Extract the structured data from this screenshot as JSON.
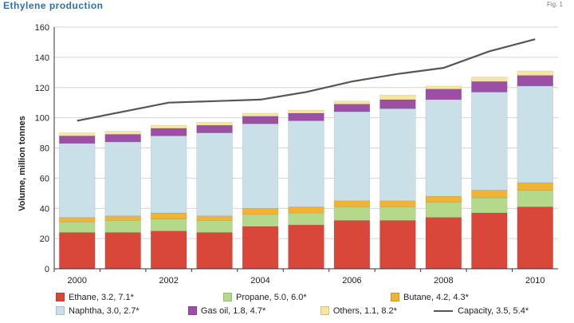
{
  "header": {
    "title": "Ethylene production",
    "fig": "Fig. 1"
  },
  "chart_data": {
    "type": "bar",
    "stacked": true,
    "title": "Ethylene production",
    "ylabel": "Volume, million tonnes",
    "ylim": [
      0,
      160
    ],
    "yticks": [
      0,
      20,
      40,
      60,
      80,
      100,
      120,
      140,
      160
    ],
    "categories": [
      "2000",
      "2001",
      "2002",
      "2003",
      "2004",
      "2005",
      "2006",
      "2007",
      "2008",
      "2009",
      "2010"
    ],
    "xtick_labels": [
      "2000",
      "",
      "2002",
      "",
      "2004",
      "",
      "2006",
      "",
      "2008",
      "",
      "2010"
    ],
    "grid": true,
    "legend_position": "bottom",
    "series": [
      {
        "name": "Ethane, 3.2, 7.1*",
        "color": "#d9473a",
        "values": [
          24,
          24,
          25,
          24,
          28,
          29,
          32,
          32,
          34,
          37,
          41
        ]
      },
      {
        "name": "Propane, 5.0, 6.0*",
        "color": "#b5d98a",
        "values": [
          7,
          8,
          8,
          8,
          8,
          8,
          9,
          9,
          10,
          10,
          11
        ]
      },
      {
        "name": "Butane, 4.2, 4.3*",
        "color": "#f2b233",
        "values": [
          3,
          3,
          4,
          3,
          4,
          4,
          4,
          4,
          4,
          5,
          5
        ]
      },
      {
        "name": "Naphtha, 3.0, 2.7*",
        "color": "#c9e0e9",
        "values": [
          49,
          49,
          51,
          55,
          56,
          57,
          59,
          61,
          64,
          65,
          64
        ]
      },
      {
        "name": "Gas oil, 1.8, 4.7*",
        "color": "#9b4fa5",
        "values": [
          5,
          5,
          5,
          5,
          5,
          5,
          5,
          6,
          7,
          7,
          7
        ]
      },
      {
        "name": "Others, 1.1, 8.2*",
        "color": "#f7e6a0",
        "values": [
          2,
          2,
          2,
          2,
          2,
          2,
          2,
          3,
          2,
          3,
          3
        ]
      }
    ],
    "capacity": {
      "name": "Capacity, 3.5, 5.4*",
      "color": "#555555",
      "values": [
        98,
        104,
        110,
        111,
        112,
        117,
        124,
        129,
        133,
        144,
        152
      ]
    }
  }
}
